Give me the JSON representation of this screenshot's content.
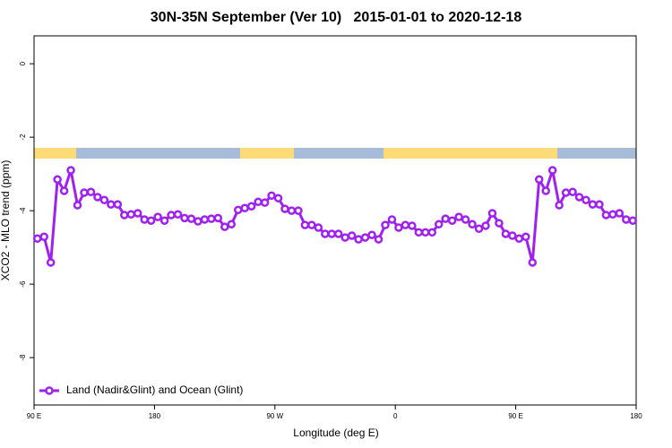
{
  "chart_data": {
    "type": "line",
    "title": "30N-35N September (Ver 10)   2015-01-01 to 2020-12-18",
    "xlabel": "Longitude (deg E)",
    "ylabel": "XCO2 - MLO trend (ppm)",
    "x": [
      92.5,
      97.5,
      102.5,
      107.5,
      112.5,
      117.5,
      122.5,
      127.5,
      132.5,
      137.5,
      142.5,
      147.5,
      152.5,
      157.5,
      162.5,
      167.5,
      172.5,
      177.5,
      182.5,
      187.5,
      192.5,
      197.5,
      202.5,
      207.5,
      212.5,
      217.5,
      222.5,
      227.5,
      232.5,
      237.5,
      242.5,
      247.5,
      252.5,
      257.5,
      262.5,
      267.5,
      272.5,
      277.5,
      282.5,
      287.5,
      292.5,
      297.5,
      302.5,
      307.5,
      312.5,
      317.5,
      322.5,
      327.5,
      332.5,
      337.5,
      342.5,
      347.5,
      352.5,
      357.5,
      362.5,
      367.5,
      372.5,
      377.5,
      382.5,
      387.5,
      392.5,
      397.5,
      402.5,
      407.5,
      412.5,
      417.5,
      422.5,
      427.5,
      432.5,
      437.5,
      442.5,
      447.5,
      452.5,
      457.5,
      462.5,
      467.5,
      472.5,
      477.5,
      482.5,
      487.5,
      492.5,
      497.5,
      502.5,
      507.5,
      512.5,
      517.5,
      522.5,
      527.5,
      532.5,
      537.5
    ],
    "series": [
      {
        "name": "Land (Nadir&Glint) and Ocean (Glint)",
        "color": "#a020f0",
        "values": [
          -4.76,
          -4.71,
          -5.41,
          -3.15,
          -3.46,
          -2.9,
          -3.85,
          -3.51,
          -3.49,
          -3.63,
          -3.71,
          -3.83,
          -3.83,
          -4.12,
          -4.1,
          -4.07,
          -4.24,
          -4.27,
          -4.17,
          -4.27,
          -4.12,
          -4.1,
          -4.2,
          -4.22,
          -4.29,
          -4.24,
          -4.22,
          -4.2,
          -4.44,
          -4.37,
          -3.98,
          -3.93,
          -3.88,
          -3.76,
          -3.78,
          -3.59,
          -3.66,
          -3.95,
          -4.0,
          -4.0,
          -4.39,
          -4.39,
          -4.46,
          -4.63,
          -4.63,
          -4.63,
          -4.73,
          -4.68,
          -4.78,
          -4.73,
          -4.66,
          -4.78,
          -4.39,
          -4.24,
          -4.46,
          -4.39,
          -4.41,
          -4.59,
          -4.59,
          -4.59,
          -4.37,
          -4.22,
          -4.27,
          -4.17,
          -4.24,
          -4.37,
          -4.49,
          -4.41,
          -4.07,
          -4.34,
          -4.63,
          -4.68,
          -4.76,
          -4.71,
          -5.41,
          -3.15,
          -3.46,
          -2.9,
          -3.85,
          -3.51,
          -3.49,
          -3.63,
          -3.71,
          -3.83,
          -3.83,
          -4.12,
          -4.1,
          -4.07,
          -4.24,
          -4.27
        ]
      }
    ],
    "xlim": [
      90,
      540
    ],
    "xticks": [
      {
        "value": 90,
        "label": "90 E"
      },
      {
        "value": 180,
        "label": "180"
      },
      {
        "value": 270,
        "label": "90 W"
      },
      {
        "value": 360,
        "label": "0"
      },
      {
        "value": 450,
        "label": "90 E"
      },
      {
        "value": 540,
        "label": "180"
      }
    ],
    "ylim": [
      -9.29,
      0.76
    ],
    "yticks": [
      0,
      -2,
      -4,
      -6,
      -8
    ],
    "legend": "bottomleft"
  }
}
